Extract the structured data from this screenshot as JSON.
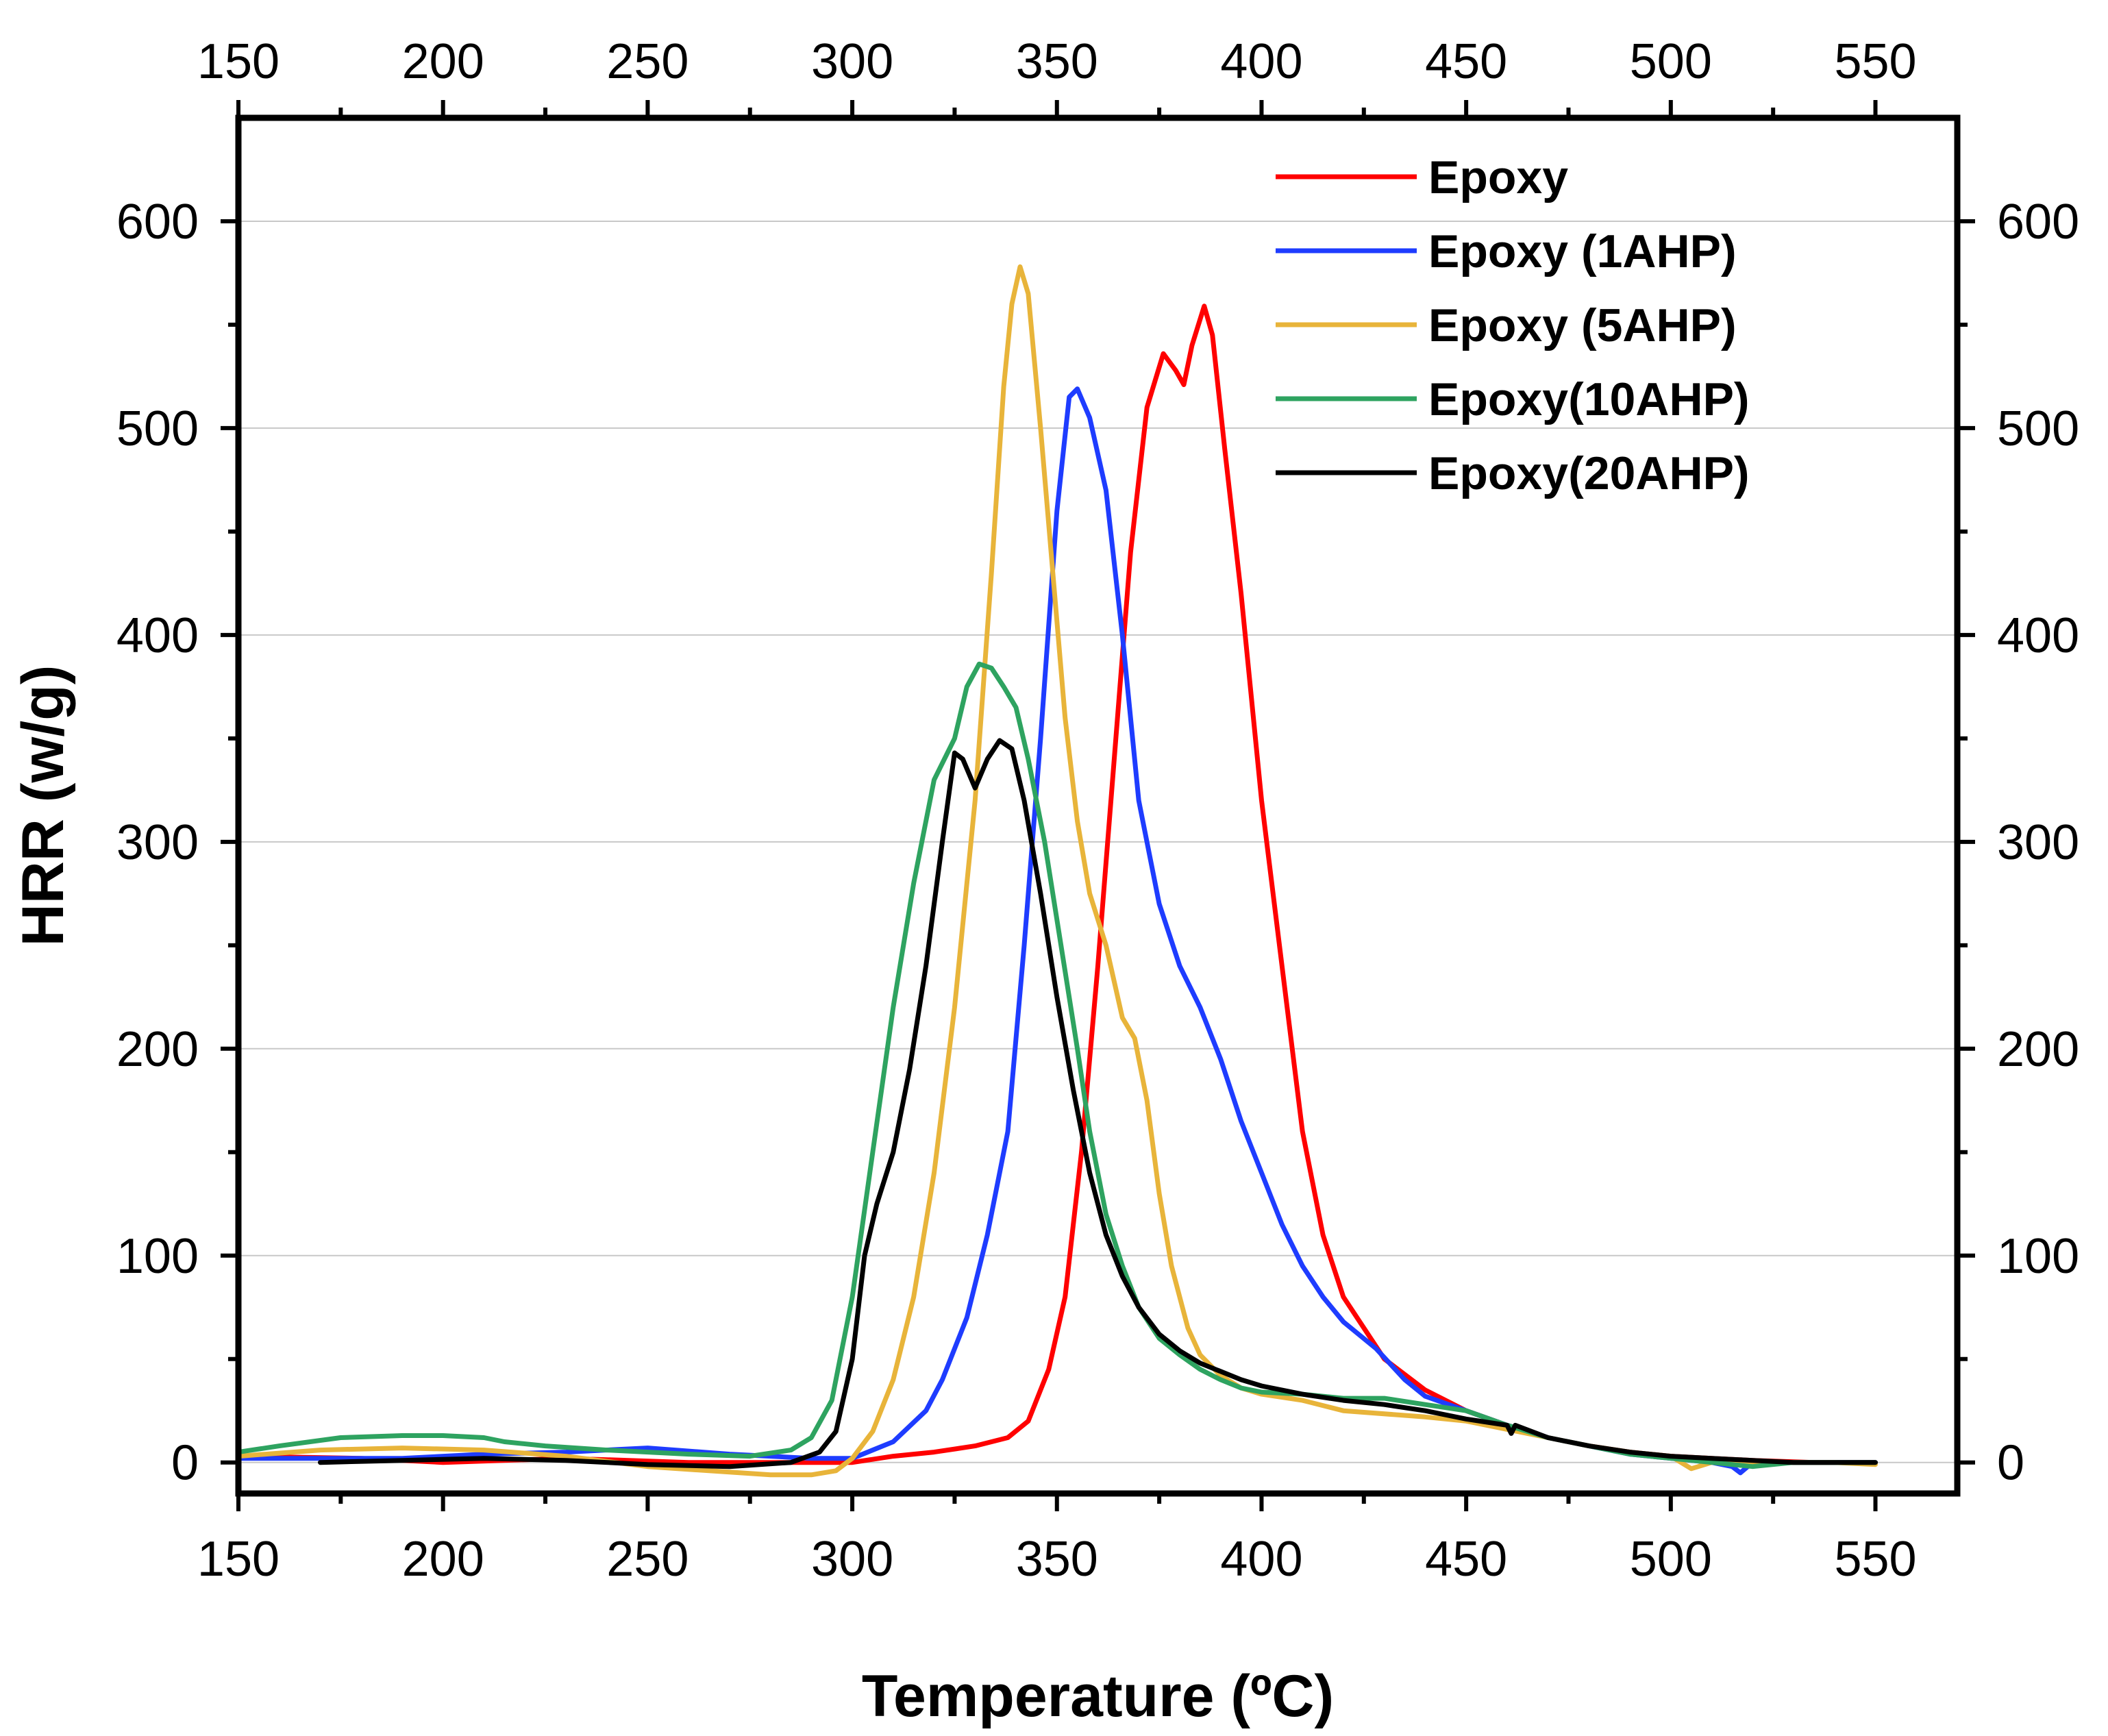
{
  "chart_data": {
    "type": "line",
    "xlabel": "Temperature (ºC)",
    "ylabel": "HRR (w/g)",
    "xlim": [
      150,
      570
    ],
    "ylim": [
      -15,
      650
    ],
    "x_ticks": [
      150,
      200,
      250,
      300,
      350,
      400,
      450,
      500,
      550
    ],
    "x_tick_labels": [
      "150",
      "200",
      "250",
      "300",
      "350",
      "400",
      "450",
      "500",
      "550"
    ],
    "y_ticks": [
      0,
      100,
      200,
      300,
      400,
      500,
      600
    ],
    "y_tick_labels": [
      "0",
      "100",
      "200",
      "300",
      "400",
      "500",
      "600"
    ],
    "grid": "horizontal",
    "legend_position": "top-right",
    "series": [
      {
        "name": "Epoxy",
        "color": "#ff0000",
        "points": [
          [
            150,
            3
          ],
          [
            180,
            2
          ],
          [
            200,
            0
          ],
          [
            230,
            2
          ],
          [
            260,
            0
          ],
          [
            290,
            0
          ],
          [
            300,
            0
          ],
          [
            310,
            3
          ],
          [
            320,
            5
          ],
          [
            330,
            8
          ],
          [
            338,
            12
          ],
          [
            343,
            20
          ],
          [
            348,
            45
          ],
          [
            352,
            80
          ],
          [
            356,
            150
          ],
          [
            360,
            240
          ],
          [
            364,
            340
          ],
          [
            368,
            440
          ],
          [
            372,
            510
          ],
          [
            376,
            536
          ],
          [
            379,
            528
          ],
          [
            381,
            521
          ],
          [
            383,
            540
          ],
          [
            386,
            559
          ],
          [
            388,
            545
          ],
          [
            391,
            490
          ],
          [
            395,
            420
          ],
          [
            400,
            320
          ],
          [
            405,
            240
          ],
          [
            410,
            160
          ],
          [
            415,
            110
          ],
          [
            420,
            80
          ],
          [
            430,
            50
          ],
          [
            440,
            35
          ],
          [
            450,
            25
          ],
          [
            460,
            18
          ],
          [
            470,
            12
          ],
          [
            480,
            8
          ],
          [
            490,
            5
          ],
          [
            500,
            3
          ],
          [
            510,
            2
          ],
          [
            520,
            1
          ],
          [
            535,
            0
          ],
          [
            550,
            0
          ]
        ]
      },
      {
        "name": "Epoxy (1AHP)",
        "color": "#1e3cff",
        "points": [
          [
            150,
            2
          ],
          [
            170,
            2
          ],
          [
            190,
            2
          ],
          [
            210,
            4
          ],
          [
            230,
            5
          ],
          [
            250,
            7
          ],
          [
            270,
            4
          ],
          [
            290,
            2
          ],
          [
            300,
            2
          ],
          [
            310,
            10
          ],
          [
            318,
            25
          ],
          [
            322,
            40
          ],
          [
            328,
            70
          ],
          [
            333,
            110
          ],
          [
            338,
            160
          ],
          [
            342,
            250
          ],
          [
            346,
            350
          ],
          [
            350,
            460
          ],
          [
            353,
            515
          ],
          [
            355,
            519
          ],
          [
            358,
            505
          ],
          [
            362,
            470
          ],
          [
            366,
            400
          ],
          [
            370,
            320
          ],
          [
            375,
            270
          ],
          [
            380,
            240
          ],
          [
            385,
            220
          ],
          [
            390,
            195
          ],
          [
            395,
            165
          ],
          [
            400,
            140
          ],
          [
            405,
            115
          ],
          [
            410,
            95
          ],
          [
            415,
            80
          ],
          [
            420,
            68
          ],
          [
            428,
            55
          ],
          [
            435,
            40
          ],
          [
            440,
            32
          ],
          [
            450,
            25
          ],
          [
            460,
            18
          ],
          [
            470,
            12
          ],
          [
            480,
            8
          ],
          [
            490,
            4
          ],
          [
            500,
            2
          ],
          [
            510,
            0
          ],
          [
            515,
            -2
          ],
          [
            517,
            -5
          ],
          [
            520,
            0
          ],
          [
            530,
            0
          ],
          [
            550,
            0
          ]
        ]
      },
      {
        "name": "Epoxy (5AHP)",
        "color": "#e8b43a",
        "points": [
          [
            150,
            3
          ],
          [
            170,
            6
          ],
          [
            190,
            7
          ],
          [
            210,
            6
          ],
          [
            230,
            3
          ],
          [
            250,
            -2
          ],
          [
            265,
            -4
          ],
          [
            280,
            -6
          ],
          [
            290,
            -6
          ],
          [
            296,
            -4
          ],
          [
            300,
            2
          ],
          [
            305,
            15
          ],
          [
            310,
            40
          ],
          [
            315,
            80
          ],
          [
            320,
            140
          ],
          [
            325,
            220
          ],
          [
            330,
            320
          ],
          [
            334,
            430
          ],
          [
            337,
            520
          ],
          [
            339,
            560
          ],
          [
            341,
            578
          ],
          [
            343,
            565
          ],
          [
            346,
            500
          ],
          [
            349,
            430
          ],
          [
            352,
            360
          ],
          [
            355,
            310
          ],
          [
            358,
            275
          ],
          [
            362,
            250
          ],
          [
            366,
            215
          ],
          [
            369,
            205
          ],
          [
            372,
            175
          ],
          [
            375,
            130
          ],
          [
            378,
            95
          ],
          [
            382,
            65
          ],
          [
            385,
            52
          ],
          [
            390,
            42
          ],
          [
            395,
            36
          ],
          [
            400,
            33
          ],
          [
            410,
            30
          ],
          [
            420,
            25
          ],
          [
            440,
            22
          ],
          [
            450,
            20
          ],
          [
            460,
            16
          ],
          [
            470,
            12
          ],
          [
            480,
            8
          ],
          [
            490,
            5
          ],
          [
            500,
            3
          ],
          [
            505,
            -3
          ],
          [
            510,
            0
          ],
          [
            520,
            0
          ],
          [
            540,
            0
          ],
          [
            550,
            -1
          ]
        ]
      },
      {
        "name": "Epoxy(10AHP)",
        "color": "#2ea360",
        "points": [
          [
            150,
            5
          ],
          [
            160,
            8
          ],
          [
            175,
            12
          ],
          [
            190,
            13
          ],
          [
            200,
            13
          ],
          [
            210,
            12
          ],
          [
            215,
            10
          ],
          [
            225,
            8
          ],
          [
            240,
            6
          ],
          [
            260,
            4
          ],
          [
            275,
            3
          ],
          [
            285,
            6
          ],
          [
            290,
            12
          ],
          [
            295,
            30
          ],
          [
            300,
            80
          ],
          [
            305,
            150
          ],
          [
            310,
            220
          ],
          [
            315,
            280
          ],
          [
            320,
            330
          ],
          [
            325,
            350
          ],
          [
            328,
            375
          ],
          [
            331,
            386
          ],
          [
            334,
            384
          ],
          [
            337,
            375
          ],
          [
            340,
            365
          ],
          [
            343,
            340
          ],
          [
            347,
            300
          ],
          [
            351,
            250
          ],
          [
            355,
            200
          ],
          [
            358,
            160
          ],
          [
            362,
            120
          ],
          [
            366,
            95
          ],
          [
            370,
            75
          ],
          [
            375,
            60
          ],
          [
            380,
            52
          ],
          [
            385,
            45
          ],
          [
            390,
            40
          ],
          [
            395,
            36
          ],
          [
            400,
            34
          ],
          [
            410,
            33
          ],
          [
            420,
            31
          ],
          [
            430,
            31
          ],
          [
            440,
            28
          ],
          [
            450,
            25
          ],
          [
            460,
            18
          ],
          [
            470,
            12
          ],
          [
            480,
            8
          ],
          [
            490,
            4
          ],
          [
            500,
            2
          ],
          [
            510,
            0
          ],
          [
            520,
            -2
          ],
          [
            530,
            0
          ],
          [
            550,
            0
          ]
        ]
      },
      {
        "name": "Epoxy(20AHP)",
        "color": "#000000",
        "points": [
          [
            170,
            0
          ],
          [
            190,
            1
          ],
          [
            210,
            2
          ],
          [
            230,
            1
          ],
          [
            250,
            -1
          ],
          [
            270,
            -2
          ],
          [
            285,
            0
          ],
          [
            292,
            5
          ],
          [
            296,
            15
          ],
          [
            300,
            50
          ],
          [
            303,
            100
          ],
          [
            306,
            125
          ],
          [
            310,
            150
          ],
          [
            314,
            190
          ],
          [
            318,
            240
          ],
          [
            322,
            300
          ],
          [
            325,
            343
          ],
          [
            327,
            340
          ],
          [
            330,
            326
          ],
          [
            333,
            340
          ],
          [
            336,
            349
          ],
          [
            339,
            345
          ],
          [
            342,
            320
          ],
          [
            346,
            275
          ],
          [
            350,
            225
          ],
          [
            354,
            180
          ],
          [
            358,
            140
          ],
          [
            362,
            110
          ],
          [
            366,
            90
          ],
          [
            370,
            75
          ],
          [
            375,
            62
          ],
          [
            380,
            54
          ],
          [
            385,
            48
          ],
          [
            390,
            44
          ],
          [
            395,
            40
          ],
          [
            400,
            37
          ],
          [
            410,
            33
          ],
          [
            420,
            30
          ],
          [
            430,
            28
          ],
          [
            440,
            25
          ],
          [
            450,
            21
          ],
          [
            460,
            18
          ],
          [
            461,
            14
          ],
          [
            462,
            18
          ],
          [
            470,
            12
          ],
          [
            480,
            8
          ],
          [
            490,
            5
          ],
          [
            500,
            3
          ],
          [
            510,
            2
          ],
          [
            520,
            1
          ],
          [
            530,
            0
          ],
          [
            550,
            0
          ]
        ]
      }
    ]
  }
}
